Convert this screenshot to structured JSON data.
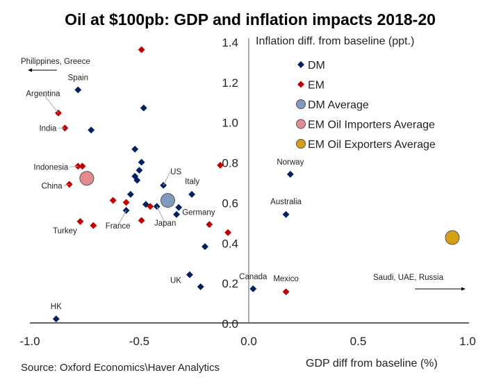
{
  "chart_data": {
    "type": "scatter",
    "title": "Oil at $100pb: GDP and inflation impacts 2018-20",
    "xlabel": "GDP diff from baseline (%)",
    "ylabel": "Inflation diff. from baseline (ppt.)",
    "xlim": [
      -1.0,
      1.0
    ],
    "ylim": [
      0.0,
      1.4
    ],
    "x_ticks": [
      "-1.0",
      "-0.5",
      "0.0",
      "0.5",
      "1.0"
    ],
    "y_ticks": [
      "0.0",
      "0.2",
      "0.4",
      "0.6",
      "0.8",
      "1.0",
      "1.2",
      "1.4"
    ],
    "grid": false,
    "legend_position": "top-right",
    "source": "Source: Oxford Economics\\Haver Analytics",
    "series": [
      {
        "name": "DM",
        "marker": "diamond",
        "color": "#002060",
        "points": [
          {
            "x": -0.78,
            "y": 1.16,
            "label": "Spain"
          },
          {
            "x": -0.48,
            "y": 1.07
          },
          {
            "x": -0.72,
            "y": 0.96
          },
          {
            "x": -0.52,
            "y": 0.865
          },
          {
            "x": -0.49,
            "y": 0.8
          },
          {
            "x": -0.5,
            "y": 0.76
          },
          {
            "x": -0.52,
            "y": 0.73
          },
          {
            "x": -0.51,
            "y": 0.71
          },
          {
            "x": -0.39,
            "y": 0.685,
            "label": "US"
          },
          {
            "x": -0.26,
            "y": 0.64,
            "label": "Italy"
          },
          {
            "x": -0.54,
            "y": 0.64
          },
          {
            "x": -0.47,
            "y": 0.59
          },
          {
            "x": -0.56,
            "y": 0.56,
            "label": "France"
          },
          {
            "x": -0.42,
            "y": 0.58,
            "label": "Japan"
          },
          {
            "x": -0.32,
            "y": 0.575,
            "label": "Germany"
          },
          {
            "x": -0.33,
            "y": 0.54
          },
          {
            "x": -0.2,
            "y": 0.38
          },
          {
            "x": -0.27,
            "y": 0.24,
            "label": "UK"
          },
          {
            "x": -0.22,
            "y": 0.18
          },
          {
            "x": -0.88,
            "y": 0.02,
            "label": "HK"
          },
          {
            "x": 0.02,
            "y": 0.17,
            "label": "Canada"
          },
          {
            "x": 0.19,
            "y": 0.74,
            "label": "Norway"
          },
          {
            "x": 0.17,
            "y": 0.54,
            "label": "Australia"
          }
        ]
      },
      {
        "name": "EM",
        "marker": "diamond",
        "color": "#C00000",
        "points": [
          {
            "x": -0.49,
            "y": 1.36
          },
          {
            "x": -0.87,
            "y": 1.045,
            "label": "Argentina"
          },
          {
            "x": -0.84,
            "y": 0.97,
            "label": "India"
          },
          {
            "x": -0.78,
            "y": 0.78,
            "label": "Indonesia"
          },
          {
            "x": -0.76,
            "y": 0.78
          },
          {
            "x": -0.82,
            "y": 0.69,
            "label": "China"
          },
          {
            "x": -0.13,
            "y": 0.785
          },
          {
            "x": -0.62,
            "y": 0.61
          },
          {
            "x": -0.56,
            "y": 0.6
          },
          {
            "x": -0.45,
            "y": 0.58
          },
          {
            "x": -0.49,
            "y": 0.51
          },
          {
            "x": -0.77,
            "y": 0.505,
            "label": "Turkey"
          },
          {
            "x": -0.71,
            "y": 0.485
          },
          {
            "x": -0.18,
            "y": 0.49
          },
          {
            "x": -0.095,
            "y": 0.45
          },
          {
            "x": 0.17,
            "y": 0.155,
            "label": "Mexico"
          }
        ]
      },
      {
        "name": "DM Average",
        "marker": "circle",
        "color": "#7F9BBE",
        "points": [
          {
            "x": -0.37,
            "y": 0.61
          }
        ]
      },
      {
        "name": "EM Oil Importers Average",
        "marker": "circle",
        "color": "#E58A8F",
        "points": [
          {
            "x": -0.74,
            "y": 0.72
          }
        ]
      },
      {
        "name": "EM Oil Exporters Average",
        "marker": "circle",
        "color": "#D4A017",
        "points": [
          {
            "x": 0.93,
            "y": 0.425
          }
        ]
      }
    ],
    "annotations": [
      {
        "text": "Philippines, Greece",
        "arrow": "left"
      },
      {
        "text": "Saudi, UAE, Russia",
        "arrow": "right"
      }
    ]
  }
}
